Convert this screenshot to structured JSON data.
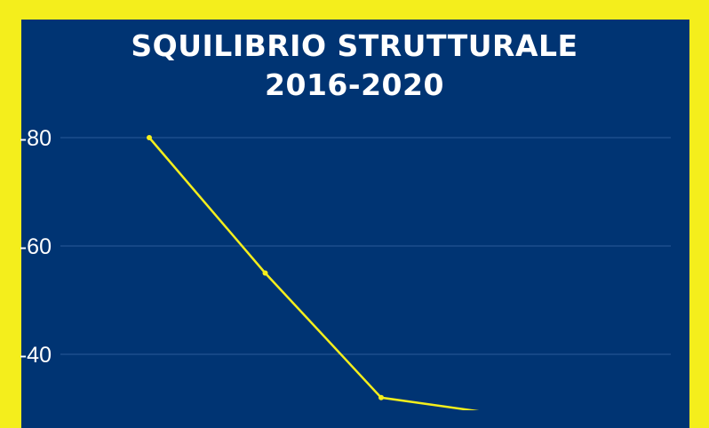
{
  "chart_data": {
    "type": "line",
    "title_lines": [
      "SQUILIBRIO STRUTTURALE",
      "2016-2020"
    ],
    "yticks": [
      "-80",
      "-60",
      "-40"
    ],
    "ytick_values": [
      -80,
      -60,
      -40
    ],
    "values": [
      -80,
      -55,
      -32,
      -29
    ],
    "grid": true,
    "colors": {
      "background": "#003473",
      "border": "#f4ee1c",
      "line": "#f4ee1c",
      "grid": "#2a5a9a",
      "text": "#ffffff"
    }
  }
}
